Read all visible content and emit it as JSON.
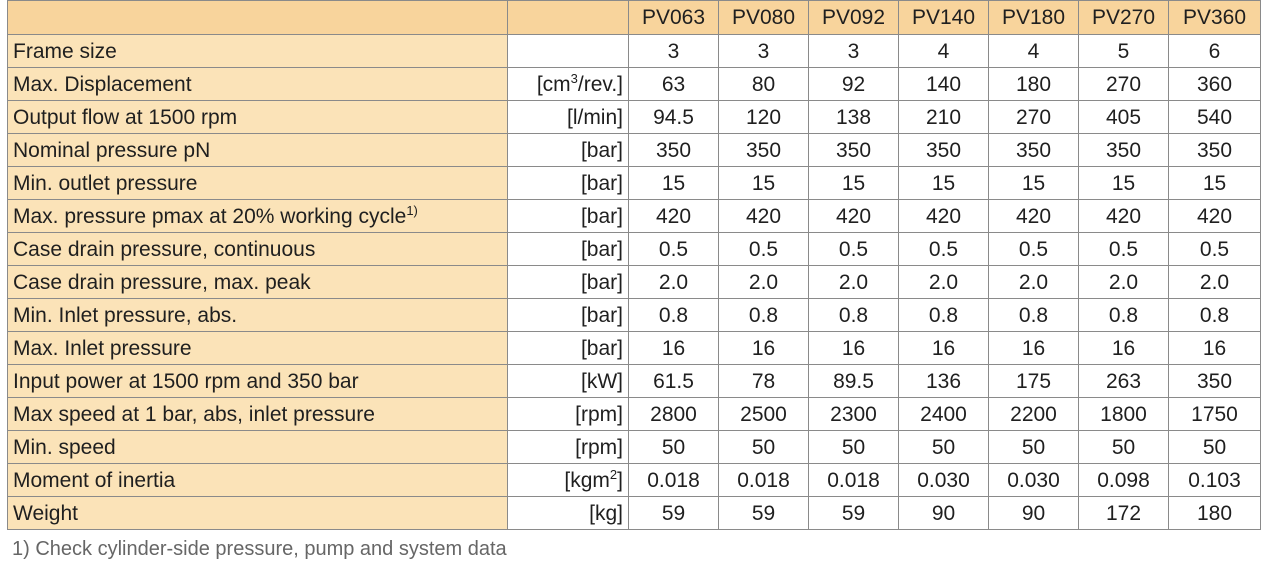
{
  "table": {
    "headers": [
      "",
      "",
      "PV063",
      "PV080",
      "PV092",
      "PV140",
      "PV180",
      "PV270",
      "PV360"
    ],
    "rows": [
      {
        "label": "Frame size",
        "label_sup": "",
        "unit": "",
        "unit_sup": "",
        "unit_suffix": "",
        "values": [
          "3",
          "3",
          "3",
          "4",
          "4",
          "5",
          "6"
        ]
      },
      {
        "label": "Max. Displacement",
        "label_sup": "",
        "unit": "[cm",
        "unit_sup": "3",
        "unit_suffix": "/rev.]",
        "values": [
          "63",
          "80",
          "92",
          "140",
          "180",
          "270",
          "360"
        ]
      },
      {
        "label": "Output flow at 1500 rpm",
        "label_sup": "",
        "unit": "[l/min]",
        "unit_sup": "",
        "unit_suffix": "",
        "values": [
          "94.5",
          "120",
          "138",
          "210",
          "270",
          "405",
          "540"
        ]
      },
      {
        "label": "Nominal pressure pN",
        "label_sup": "",
        "unit": "[bar]",
        "unit_sup": "",
        "unit_suffix": "",
        "values": [
          "350",
          "350",
          "350",
          "350",
          "350",
          "350",
          "350"
        ]
      },
      {
        "label": "Min. outlet pressure",
        "label_sup": "",
        "unit": "[bar]",
        "unit_sup": "",
        "unit_suffix": "",
        "values": [
          "15",
          "15",
          "15",
          "15",
          "15",
          "15",
          "15"
        ]
      },
      {
        "label": "Max. pressure pmax at 20% working cycle",
        "label_sup": "1)",
        "unit": "[bar]",
        "unit_sup": "",
        "unit_suffix": "",
        "values": [
          "420",
          "420",
          "420",
          "420",
          "420",
          "420",
          "420"
        ]
      },
      {
        "label": "Case drain pressure, continuous",
        "label_sup": "",
        "unit": "[bar]",
        "unit_sup": "",
        "unit_suffix": "",
        "values": [
          "0.5",
          "0.5",
          "0.5",
          "0.5",
          "0.5",
          "0.5",
          "0.5"
        ]
      },
      {
        "label": "Case drain pressure, max. peak",
        "label_sup": "",
        "unit": "[bar]",
        "unit_sup": "",
        "unit_suffix": "",
        "values": [
          "2.0",
          "2.0",
          "2.0",
          "2.0",
          "2.0",
          "2.0",
          "2.0"
        ]
      },
      {
        "label": "Min. Inlet pressure, abs.",
        "label_sup": "",
        "unit": "[bar]",
        "unit_sup": "",
        "unit_suffix": "",
        "values": [
          "0.8",
          "0.8",
          "0.8",
          "0.8",
          "0.8",
          "0.8",
          "0.8"
        ]
      },
      {
        "label": "Max. Inlet pressure",
        "label_sup": "",
        "unit": "[bar]",
        "unit_sup": "",
        "unit_suffix": "",
        "values": [
          "16",
          "16",
          "16",
          "16",
          "16",
          "16",
          "16"
        ]
      },
      {
        "label": "Input power at 1500 rpm and 350 bar",
        "label_sup": "",
        "unit": "[kW]",
        "unit_sup": "",
        "unit_suffix": "",
        "values": [
          "61.5",
          "78",
          "89.5",
          "136",
          "175",
          "263",
          "350"
        ]
      },
      {
        "label": "Max speed at 1 bar, abs, inlet pressure",
        "label_sup": "",
        "unit": "[rpm]",
        "unit_sup": "",
        "unit_suffix": "",
        "values": [
          "2800",
          "2500",
          "2300",
          "2400",
          "2200",
          "1800",
          "1750"
        ]
      },
      {
        "label": "Min. speed",
        "label_sup": "",
        "unit": "[rpm]",
        "unit_sup": "",
        "unit_suffix": "",
        "values": [
          "50",
          "50",
          "50",
          "50",
          "50",
          "50",
          "50"
        ]
      },
      {
        "label": "Moment of inertia",
        "label_sup": "",
        "unit": "[kgm",
        "unit_sup": "2",
        "unit_suffix": "]",
        "values": [
          "0.018",
          "0.018",
          "0.018",
          "0.030",
          "0.030",
          "0.098",
          "0.103"
        ]
      },
      {
        "label": "Weight",
        "label_sup": "",
        "unit": "[kg]",
        "unit_sup": "",
        "unit_suffix": "",
        "values": [
          "59",
          "59",
          "59",
          "90",
          "90",
          "172",
          "180"
        ]
      }
    ]
  },
  "footnote": "1) Check cylinder-side pressure, pump and system data",
  "colors": {
    "header_bg": "#f8d49c",
    "label_bg": "#fbe3b8",
    "border": "#8a8a8a"
  }
}
